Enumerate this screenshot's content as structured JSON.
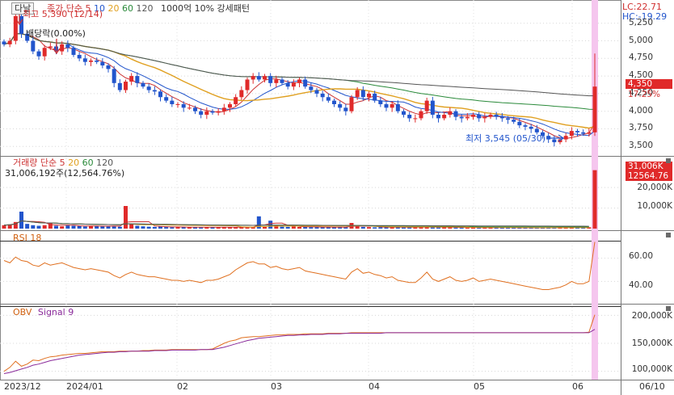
{
  "title": "다날",
  "price_header": {
    "series_label": "종가 단순",
    "ma_periods": [
      "5",
      "10",
      "20",
      "60",
      "120"
    ],
    "ma_colors": [
      "#cc3333",
      "#2255cc",
      "#e0a020",
      "#2a8a3a",
      "#555555"
    ],
    "note": "1000억 10% 강세패턴",
    "lc": "LC:22.71",
    "hc": "HC:-19.29"
  },
  "annotations": {
    "high": "최고 5,390 (12/14)",
    "dividend": "배당락(0.00%)",
    "low": "최저 3,545 (05/30)"
  },
  "price_axis": {
    "ticks": [
      3500,
      3750,
      4000,
      4250,
      4500,
      4750,
      5000,
      5250
    ],
    "tick_labels": [
      "3,500",
      "3,750",
      "4,000",
      "4,250",
      "4,500",
      "4,750",
      "5,000",
      "5,250"
    ],
    "current": "4,350",
    "change": "17.25%"
  },
  "volume_header": {
    "label": "거래량",
    "ma_label": "단순",
    "ma_periods": [
      "5",
      "20",
      "60",
      "120"
    ],
    "ma_colors": [
      "#cc3333",
      "#e0a020",
      "#2a8a3a",
      "#555555"
    ],
    "value": "31,006,192주(12,564.76%)"
  },
  "volume_axis": {
    "tick_labels": [
      "20,000K",
      "10,000K"
    ],
    "current": "31,006K",
    "current_pct": "12564.76"
  },
  "rsi": {
    "label": "RSI 18",
    "tick_labels": [
      "60.00",
      "40.00"
    ]
  },
  "obv": {
    "label": "OBV",
    "signal_label": "Signal 9",
    "tick_labels": [
      "200,000K",
      "150,000K",
      "100,000K"
    ]
  },
  "dates": [
    "2023/12",
    "2024/01",
    "02",
    "03",
    "04",
    "05",
    "06",
    "06/10"
  ],
  "chart_data": [
    {
      "type": "candlestick",
      "title": "다날",
      "y_range": [
        3400,
        5350
      ],
      "close": [
        4950,
        5000,
        5350,
        5100,
        5000,
        4850,
        4780,
        4900,
        4920,
        4850,
        4950,
        4900,
        4800,
        4750,
        4700,
        4720,
        4700,
        4650,
        4600,
        4400,
        4300,
        4420,
        4500,
        4400,
        4350,
        4300,
        4280,
        4200,
        4150,
        4100,
        4100,
        4050,
        4050,
        4000,
        3950,
        4000,
        3980,
        4000,
        4050,
        4100,
        4200,
        4300,
        4450,
        4500,
        4450,
        4500,
        4400,
        4450,
        4400,
        4350,
        4400,
        4450,
        4350,
        4300,
        4250,
        4200,
        4150,
        4100,
        4050,
        4000,
        4200,
        4300,
        4200,
        4250,
        4150,
        4100,
        4050,
        4100,
        4000,
        3950,
        3900,
        3900,
        4000,
        4150,
        3950,
        3900,
        3950,
        4000,
        3920,
        3900,
        3920,
        3950,
        3900,
        3920,
        3950,
        3920,
        3900,
        3880,
        3850,
        3800,
        3780,
        3750,
        3700,
        3650,
        3600,
        3560,
        3600,
        3650,
        3720,
        3700,
        3680,
        3700,
        4350
      ],
      "annotations": [
        "최고 5,390 (12/14)",
        "배당락(0.00%)",
        "최저 3,545 (05/30)"
      ],
      "last_price": 4350,
      "last_change_pct": 17.25
    },
    {
      "type": "bar",
      "title": "거래량",
      "unit": "K",
      "values": [
        1800,
        2200,
        3500,
        9000,
        2500,
        1800,
        1500,
        1800,
        3000,
        1500,
        1200,
        1800,
        1500,
        1400,
        1100,
        1300,
        1500,
        1200,
        1400,
        1300,
        1000,
        12000,
        2500,
        1500,
        1200,
        1000,
        900,
        1200,
        800,
        700,
        800,
        700,
        900,
        700,
        600,
        800,
        700,
        800,
        900,
        700,
        800,
        700,
        800,
        900,
        6500,
        900,
        4200,
        1800,
        1000,
        900,
        1200,
        900,
        900,
        800,
        800,
        700,
        800,
        700,
        900,
        800,
        3000,
        1200,
        900,
        800,
        700,
        800,
        700,
        700,
        800,
        600,
        700,
        800,
        900,
        1000,
        600,
        600,
        800,
        800,
        600,
        500,
        600,
        600,
        500,
        500,
        600,
        500,
        500,
        500,
        500,
        400,
        500,
        400,
        400,
        500,
        500,
        600,
        800,
        500,
        600,
        500,
        500,
        700,
        31006
      ]
    },
    {
      "type": "line",
      "title": "RSI 18",
      "y_range": [
        25,
        75
      ],
      "values": [
        58,
        56,
        61,
        58,
        57,
        54,
        53,
        56,
        54,
        55,
        56,
        54,
        52,
        51,
        50,
        51,
        50,
        49,
        48,
        45,
        43,
        46,
        48,
        46,
        45,
        44,
        44,
        43,
        42,
        41,
        41,
        40,
        41,
        40,
        39,
        41,
        41,
        42,
        44,
        46,
        50,
        53,
        56,
        57,
        55,
        55,
        52,
        53,
        51,
        50,
        51,
        52,
        49,
        48,
        47,
        46,
        45,
        44,
        43,
        42,
        48,
        51,
        47,
        48,
        46,
        45,
        43,
        44,
        41,
        40,
        39,
        39,
        43,
        48,
        42,
        40,
        42,
        44,
        41,
        40,
        41,
        43,
        40,
        41,
        42,
        41,
        40,
        39,
        38,
        37,
        36,
        35,
        34,
        33,
        33,
        34,
        35,
        37,
        40,
        38,
        38,
        40,
        74
      ]
    },
    {
      "type": "line",
      "title": "OBV",
      "unit": "K",
      "y_range": [
        88000,
        215000
      ],
      "series": [
        {
          "name": "OBV",
          "values": [
            100000,
            107000,
            118000,
            109000,
            113000,
            120000,
            119000,
            123000,
            126000,
            127000,
            129000,
            130000,
            131000,
            132000,
            132000,
            133000,
            134000,
            135000,
            135000,
            135000,
            136000,
            136000,
            136000,
            136000,
            137000,
            137000,
            138000,
            138000,
            138000,
            139000,
            139000,
            139000,
            139000,
            139000,
            139000,
            139000,
            140000,
            145000,
            150000,
            154000,
            156000,
            160000,
            161000,
            162000,
            162000,
            163000,
            164000,
            165000,
            165000,
            166000,
            166000,
            166000,
            167000,
            167000,
            167000,
            167000,
            168000,
            168000,
            168000,
            168000,
            169000,
            169000,
            169000,
            169000,
            169000,
            169000,
            169000,
            169000,
            169000,
            169000,
            169000,
            169000,
            169000,
            169000,
            169000,
            169000,
            169000,
            169000,
            169000,
            169000,
            169000,
            169000,
            169000,
            169000,
            169000,
            169000,
            169000,
            169000,
            169000,
            169000,
            169000,
            169000,
            169000,
            169000,
            169000,
            169000,
            169000,
            169000,
            169000,
            169000,
            169000,
            170000,
            201000
          ]
        },
        {
          "name": "Signal 9",
          "values": [
            96000,
            98000,
            101000,
            104000,
            107000,
            111000,
            113000,
            116000,
            119000,
            121000,
            123000,
            125000,
            127000,
            129000,
            130000,
            131000,
            132000,
            133000,
            134000,
            134000,
            135000,
            135000,
            136000,
            136000,
            136000,
            136000,
            137000,
            137000,
            137000,
            138000,
            138000,
            138000,
            138000,
            138000,
            139000,
            139000,
            139000,
            141000,
            143000,
            146000,
            149000,
            152000,
            155000,
            157000,
            159000,
            160000,
            161000,
            162000,
            163000,
            164000,
            164000,
            165000,
            165000,
            166000,
            166000,
            166000,
            167000,
            167000,
            167000,
            168000,
            168000,
            168000,
            168000,
            168000,
            168000,
            168000,
            169000,
            169000,
            169000,
            169000,
            169000,
            169000,
            169000,
            169000,
            169000,
            169000,
            169000,
            169000,
            169000,
            169000,
            169000,
            169000,
            169000,
            169000,
            169000,
            169000,
            169000,
            169000,
            169000,
            169000,
            169000,
            169000,
            169000,
            169000,
            169000,
            169000,
            169000,
            169000,
            169000,
            169000,
            169000,
            169000,
            175000
          ]
        }
      ]
    }
  ]
}
